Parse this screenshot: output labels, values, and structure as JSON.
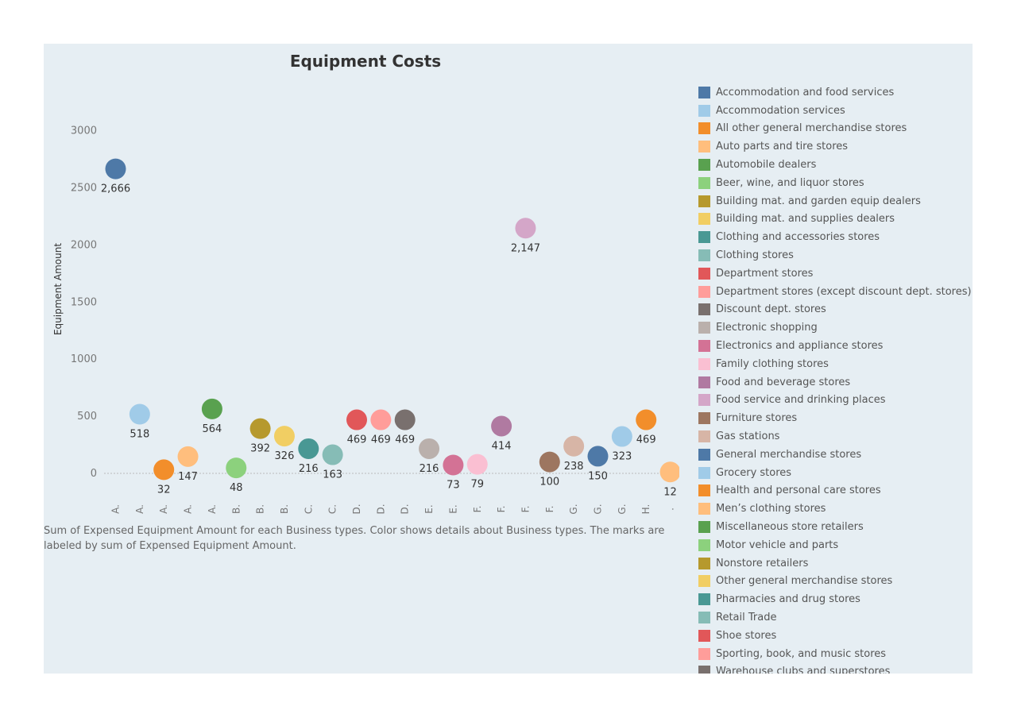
{
  "chart_data": {
    "type": "scatter",
    "title": "Equipment Costs",
    "ylabel": "Equipment Amount",
    "xlabel": "",
    "ylim": [
      -250,
      3400
    ],
    "yticks": [
      0,
      500,
      1000,
      1500,
      2000,
      2500,
      3000
    ],
    "grid": false,
    "legend_position": "right",
    "points": [
      {
        "x": "A.",
        "value": 2666,
        "label": "2,666",
        "color": "#4e79a7"
      },
      {
        "x": "A.",
        "value": 518,
        "label": "518",
        "color": "#a0cbe8"
      },
      {
        "x": "A.",
        "value": 32,
        "label": "32",
        "color": "#f28e2b"
      },
      {
        "x": "A.",
        "value": 147,
        "label": "147",
        "color": "#ffbe7d"
      },
      {
        "x": "A.",
        "value": 564,
        "label": "564",
        "color": "#59a14f"
      },
      {
        "x": "B.",
        "value": 48,
        "label": "48",
        "color": "#8cd17d"
      },
      {
        "x": "B.",
        "value": 392,
        "label": "392",
        "color": "#b6992d"
      },
      {
        "x": "B.",
        "value": 326,
        "label": "326",
        "color": "#f1ce63"
      },
      {
        "x": "C.",
        "value": 216,
        "label": "216",
        "color": "#499894"
      },
      {
        "x": "C.",
        "value": 163,
        "label": "163",
        "color": "#86bcb6"
      },
      {
        "x": "D.",
        "value": 469,
        "label": "469",
        "color": "#e15759"
      },
      {
        "x": "D.",
        "value": 469,
        "label": "469",
        "color": "#ff9d9a"
      },
      {
        "x": "D.",
        "value": 469,
        "label": "469",
        "color": "#79706e"
      },
      {
        "x": "E.",
        "value": 216,
        "label": "216",
        "color": "#bab0ac"
      },
      {
        "x": "E.",
        "value": 73,
        "label": "73",
        "color": "#d37295"
      },
      {
        "x": "F.",
        "value": 79,
        "label": "79",
        "color": "#fabfd2"
      },
      {
        "x": "F.",
        "value": 414,
        "label": "414",
        "color": "#b07aa1"
      },
      {
        "x": "F.",
        "value": 2147,
        "label": "2,147",
        "color": "#d4a6c8"
      },
      {
        "x": "F.",
        "value": 100,
        "label": "100",
        "color": "#9d7660"
      },
      {
        "x": "G.",
        "value": 238,
        "label": "238",
        "color": "#d7b5a6"
      },
      {
        "x": "G.",
        "value": 150,
        "label": "150",
        "color": "#4e79a7"
      },
      {
        "x": "G.",
        "value": 323,
        "label": "323",
        "color": "#a0cbe8"
      },
      {
        "x": "H.",
        "value": 469,
        "label": "469",
        "color": "#f28e2b"
      },
      {
        "x": ".",
        "value": 12,
        "label": "12",
        "color": "#ffbe7d"
      }
    ],
    "legend": [
      {
        "name": "Accommodation and food services",
        "color": "#4e79a7"
      },
      {
        "name": "Accommodation services",
        "color": "#a0cbe8"
      },
      {
        "name": "All other general merchandise stores",
        "color": "#f28e2b"
      },
      {
        "name": "Auto parts and tire stores",
        "color": "#ffbe7d"
      },
      {
        "name": "Automobile dealers",
        "color": "#59a14f"
      },
      {
        "name": "Beer, wine, and liquor stores",
        "color": "#8cd17d"
      },
      {
        "name": "Building mat. and garden equip dealers",
        "color": "#b6992d"
      },
      {
        "name": "Building mat. and supplies dealers",
        "color": "#f1ce63"
      },
      {
        "name": "Clothing and accessories stores",
        "color": "#499894"
      },
      {
        "name": "Clothing stores",
        "color": "#86bcb6"
      },
      {
        "name": "Department stores",
        "color": "#e15759"
      },
      {
        "name": "Department stores (except discount dept. stores)",
        "color": "#ff9d9a"
      },
      {
        "name": "Discount dept. stores",
        "color": "#79706e"
      },
      {
        "name": "Electronic shopping",
        "color": "#bab0ac"
      },
      {
        "name": "Electronics and appliance stores",
        "color": "#d37295"
      },
      {
        "name": "Family clothing stores",
        "color": "#fabfd2"
      },
      {
        "name": "Food and beverage stores",
        "color": "#b07aa1"
      },
      {
        "name": "Food service and drinking places",
        "color": "#d4a6c8"
      },
      {
        "name": "Furniture stores",
        "color": "#9d7660"
      },
      {
        "name": "Gas stations",
        "color": "#d7b5a6"
      },
      {
        "name": "General merchandise stores",
        "color": "#4e79a7"
      },
      {
        "name": "Grocery stores",
        "color": "#a0cbe8"
      },
      {
        "name": "Health and personal care stores",
        "color": "#f28e2b"
      },
      {
        "name": "Men’s clothing stores",
        "color": "#ffbe7d"
      },
      {
        "name": "Miscellaneous store retailers",
        "color": "#59a14f"
      },
      {
        "name": "Motor vehicle and parts",
        "color": "#8cd17d"
      },
      {
        "name": "Nonstore retailers",
        "color": "#b6992d"
      },
      {
        "name": "Other general merchandise stores",
        "color": "#f1ce63"
      },
      {
        "name": "Pharmacies and drug stores",
        "color": "#499894"
      },
      {
        "name": "Retail Trade",
        "color": "#86bcb6"
      },
      {
        "name": "Shoe stores",
        "color": "#e15759"
      },
      {
        "name": "Sporting, book, and music stores",
        "color": "#ff9d9a"
      },
      {
        "name": "Warehouse clubs and superstores",
        "color": "#79706e"
      }
    ]
  },
  "caption": {
    "line1": "Sum of Expensed Equipment Amount for each Business types.  Color shows details about Business types.  The marks are",
    "line2": "labeled by sum of Expensed Equipment Amount."
  },
  "colors": {
    "panel_background": "#e6eef3",
    "zero_line": "#bbbbbb",
    "tick_text": "#777777",
    "label_text": "#333333"
  }
}
